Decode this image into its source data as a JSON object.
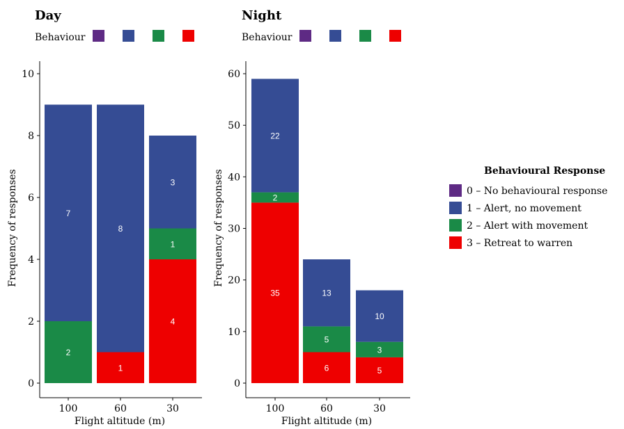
{
  "legend_title": "Behavioural Response",
  "legend_items": [
    {
      "code": "0",
      "label": "0 – No behavioural response",
      "color": "#5E2A84"
    },
    {
      "code": "1",
      "label": "1 – Alert, no movement",
      "color": "#354C94"
    },
    {
      "code": "2",
      "label": "2 – Alert with movement",
      "color": "#1A8A47"
    },
    {
      "code": "3",
      "label": "3 – Retreat to warren",
      "color": "#EE0000"
    }
  ],
  "behaviour_key_label": "Behaviour",
  "chart_data": [
    {
      "type": "bar",
      "stacked": true,
      "title": "Day",
      "xlabel": "Flight altitude (m)",
      "ylabel": "Frequency of responses",
      "categories": [
        "100",
        "60",
        "30"
      ],
      "ylim": [
        0,
        10
      ],
      "yticks": [
        0,
        2,
        4,
        6,
        8,
        10
      ],
      "series": [
        {
          "name": "3 – Retreat to warren",
          "color": "#EE0000",
          "values": [
            0,
            1,
            4
          ]
        },
        {
          "name": "2 – Alert with movement",
          "color": "#1A8A47",
          "values": [
            2,
            0,
            1
          ]
        },
        {
          "name": "1 – Alert, no movement",
          "color": "#354C94",
          "values": [
            7,
            8,
            3
          ]
        }
      ]
    },
    {
      "type": "bar",
      "stacked": true,
      "title": "Night",
      "xlabel": "Flight altitude (m)",
      "ylabel": "Frequency of responses",
      "categories": [
        "100",
        "60",
        "30"
      ],
      "ylim": [
        0,
        60
      ],
      "yticks": [
        0,
        10,
        20,
        30,
        40,
        50,
        60
      ],
      "series": [
        {
          "name": "3 – Retreat to warren",
          "color": "#EE0000",
          "values": [
            35,
            6,
            5
          ]
        },
        {
          "name": "2 – Alert with movement",
          "color": "#1A8A47",
          "values": [
            2,
            5,
            3
          ]
        },
        {
          "name": "1 – Alert, no movement",
          "color": "#354C94",
          "values": [
            22,
            13,
            10
          ]
        }
      ]
    }
  ]
}
